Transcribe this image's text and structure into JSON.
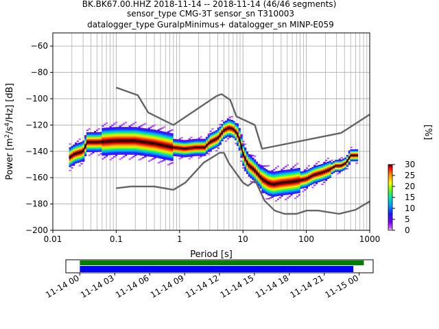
{
  "title_lines": [
    "BK.BK67.00.HHZ   2018-11-14 -- 2018-11-14  (46/46 segments)",
    "sensor_type CMG-3T sensor_sn T310003",
    "datalogger_type GuralpMinimus+ datalogger_sn MINP-E059"
  ],
  "chart_data": [
    {
      "type": "heatmap",
      "name": "ppsd",
      "xlabel": "Period [s]",
      "ylabel": "Power [m^2/s^4/Hz] [dB]",
      "xscale": "log",
      "xlim": [
        0.01,
        1000
      ],
      "ylim": [
        -200,
        -50
      ],
      "x_ticks": [
        0.01,
        0.1,
        1,
        10,
        100,
        1000
      ],
      "x_tick_labels": [
        "0.01",
        "0.1",
        "1",
        "10",
        "100",
        "1000"
      ],
      "y_ticks": [
        -200,
        -180,
        -160,
        -140,
        -120,
        -100,
        -80,
        -60
      ],
      "y_tick_labels": [
        "−200",
        "−180",
        "−160",
        "−140",
        "−120",
        "−100",
        "−80",
        "−60"
      ],
      "grid": true,
      "colorbar": {
        "label": "[%]",
        "min": 0,
        "max": 30,
        "ticks": [
          0,
          5,
          10,
          15,
          20,
          25,
          30
        ],
        "tick_labels": [
          "0",
          "5",
          "10",
          "15",
          "20",
          "25",
          "30"
        ]
      },
      "nhnm": {
        "name": "NHNM",
        "x": [
          0.1,
          0.22,
          0.32,
          0.8,
          3.8,
          4.6,
          6.3,
          7.9,
          15.4,
          20,
          354.8,
          1000
        ],
        "y": [
          -91.5,
          -97.4,
          -110.5,
          -120,
          -98,
          -96.5,
          -101,
          -113.5,
          -120,
          -138,
          -126,
          -112
        ]
      },
      "nlnm": {
        "name": "NLNM",
        "x": [
          0.1,
          0.17,
          0.4,
          0.8,
          1.24,
          2.4,
          4.3,
          5.0,
          6.0,
          10,
          12,
          15.6,
          21.9,
          31.6,
          45,
          70,
          101,
          154,
          328,
          600,
          1000
        ],
        "y": [
          -168,
          -166.7,
          -166.7,
          -169.2,
          -163.7,
          -148.6,
          -141.1,
          -141.1,
          -149,
          -163.8,
          -166.2,
          -162.1,
          -177.5,
          -185,
          -187.5,
          -187.5,
          -185,
          -185,
          -187.5,
          -184.4,
          -178
        ]
      },
      "median": {
        "name": "median",
        "x": [
          0.018,
          0.022,
          0.03,
          0.035,
          0.05,
          0.1,
          0.2,
          0.4,
          0.8,
          1.2,
          1.8,
          2.5,
          3,
          4,
          5,
          6,
          7,
          8,
          9,
          10,
          12,
          15,
          20,
          25,
          30,
          40,
          60,
          80,
          100,
          130,
          180,
          230,
          290,
          350,
          420,
          500,
          650
        ],
        "y": [
          -145,
          -142,
          -140,
          -133,
          -133,
          -132,
          -132,
          -134,
          -137,
          -138,
          -137,
          -137,
          -133,
          -130,
          -124,
          -122,
          -123,
          -126,
          -132,
          -142,
          -150,
          -154,
          -161,
          -164,
          -165,
          -164,
          -163,
          -162,
          -161,
          -158,
          -156,
          -154,
          -151,
          -151,
          -149,
          -143,
          -143
        ]
      }
    },
    {
      "type": "timeline",
      "name": "data-coverage",
      "x_tick_labels": [
        "11-14 00",
        "11-14 03",
        "11-14 06",
        "11-14 09",
        "11-14 12",
        "11-14 15",
        "11-14 18",
        "11-14 21",
        "11-15 00"
      ],
      "xlim_hours": [
        -1.2,
        25.2
      ],
      "data_coverage_hours": [
        0,
        24.4
      ],
      "processed_coverage_hours": [
        0,
        23.5
      ],
      "colors": {
        "data": "#008000",
        "processed": "#0000ff"
      }
    }
  ],
  "colors": {
    "percentiles": "#646464",
    "median": "#000000",
    "colormap": [
      "#ffffff",
      "#a000ff",
      "#4000ff",
      "#00b0ff",
      "#00e0a0",
      "#70ff00",
      "#ffff00",
      "#ff8000",
      "#ff0000",
      "#000000"
    ]
  }
}
